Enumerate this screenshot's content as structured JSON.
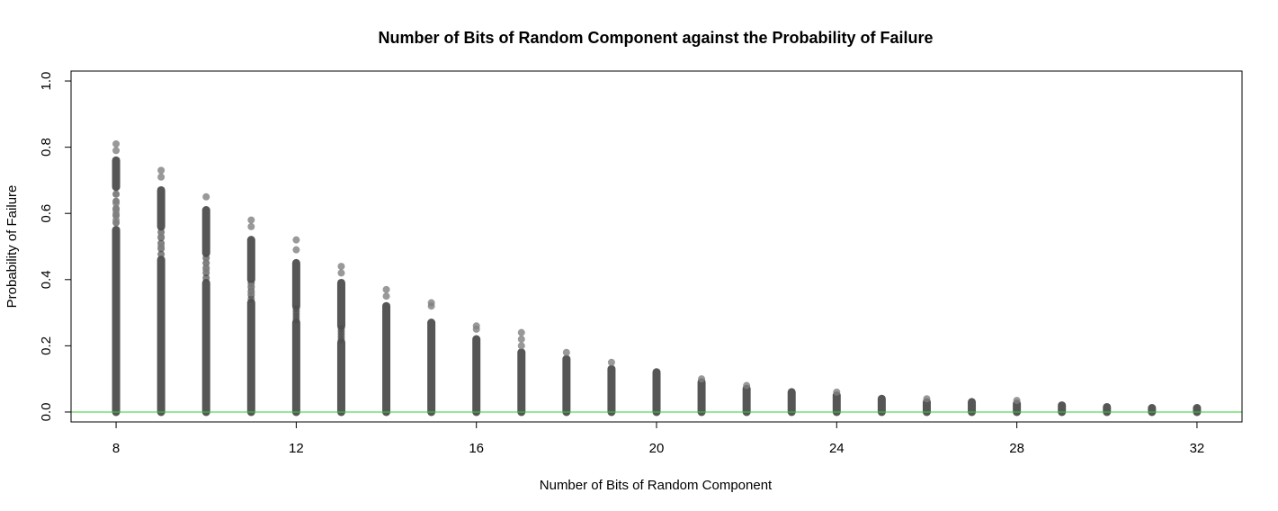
{
  "chart_data": {
    "type": "scatter",
    "title": "Number of Bits of Random Component against the Probability of Failure",
    "xlabel": "Number of Bits of Random Component",
    "ylabel": "Probability of Failure",
    "xlim": [
      7,
      33
    ],
    "ylim": [
      -0.03,
      1.03
    ],
    "xticks": [
      "8",
      "12",
      "16",
      "20",
      "24",
      "28",
      "32"
    ],
    "yticks": [
      "0.0",
      "0.2",
      "0.4",
      "0.6",
      "0.8",
      "1.0"
    ],
    "reference_line": {
      "y": 0.0,
      "color": "#33cc33"
    },
    "point_color": "#4d4d4d",
    "grid": false,
    "legend": "none",
    "columns": [
      {
        "x": 8,
        "dense_max": 0.55,
        "upper_band": [
          0.68,
          0.76
        ],
        "outliers": [
          0.81,
          0.79,
          0.63,
          0.61,
          0.6,
          0.58
        ]
      },
      {
        "x": 9,
        "dense_max": 0.46,
        "upper_band": [
          0.56,
          0.67
        ],
        "outliers": [
          0.73,
          0.71,
          0.53,
          0.5
        ]
      },
      {
        "x": 10,
        "dense_max": 0.39,
        "upper_band": [
          0.48,
          0.61
        ],
        "outliers": [
          0.65,
          0.45,
          0.43
        ]
      },
      {
        "x": 11,
        "dense_max": 0.33,
        "upper_band": [
          0.4,
          0.52
        ],
        "outliers": [
          0.58,
          0.56,
          0.38,
          0.36
        ]
      },
      {
        "x": 12,
        "dense_max": 0.27,
        "upper_band": [
          0.32,
          0.45
        ],
        "outliers": [
          0.52,
          0.49
        ]
      },
      {
        "x": 13,
        "dense_max": 0.21,
        "upper_band": [
          0.26,
          0.39
        ],
        "outliers": [
          0.44,
          0.42
        ]
      },
      {
        "x": 14,
        "dense_max": 0.32,
        "upper_band": null,
        "outliers": [
          0.37,
          0.35
        ]
      },
      {
        "x": 15,
        "dense_max": 0.27,
        "upper_band": null,
        "outliers": [
          0.33,
          0.32
        ]
      },
      {
        "x": 16,
        "dense_max": 0.22,
        "upper_band": null,
        "outliers": [
          0.26,
          0.25
        ]
      },
      {
        "x": 17,
        "dense_max": 0.18,
        "upper_band": null,
        "outliers": [
          0.24,
          0.22,
          0.2
        ]
      },
      {
        "x": 18,
        "dense_max": 0.16,
        "upper_band": null,
        "outliers": [
          0.18
        ]
      },
      {
        "x": 19,
        "dense_max": 0.13,
        "upper_band": null,
        "outliers": [
          0.15
        ]
      },
      {
        "x": 20,
        "dense_max": 0.12,
        "upper_band": null,
        "outliers": []
      },
      {
        "x": 21,
        "dense_max": 0.09,
        "upper_band": null,
        "outliers": [
          0.1
        ]
      },
      {
        "x": 22,
        "dense_max": 0.07,
        "upper_band": null,
        "outliers": [
          0.08
        ]
      },
      {
        "x": 23,
        "dense_max": 0.06,
        "upper_band": null,
        "outliers": []
      },
      {
        "x": 24,
        "dense_max": 0.05,
        "upper_band": null,
        "outliers": [
          0.06
        ]
      },
      {
        "x": 25,
        "dense_max": 0.04,
        "upper_band": null,
        "outliers": []
      },
      {
        "x": 26,
        "dense_max": 0.03,
        "upper_band": null,
        "outliers": [
          0.04
        ]
      },
      {
        "x": 27,
        "dense_max": 0.03,
        "upper_band": null,
        "outliers": []
      },
      {
        "x": 28,
        "dense_max": 0.025,
        "upper_band": null,
        "outliers": [
          0.035
        ]
      },
      {
        "x": 29,
        "dense_max": 0.02,
        "upper_band": null,
        "outliers": []
      },
      {
        "x": 30,
        "dense_max": 0.015,
        "upper_band": null,
        "outliers": []
      },
      {
        "x": 31,
        "dense_max": 0.012,
        "upper_band": null,
        "outliers": []
      },
      {
        "x": 32,
        "dense_max": 0.012,
        "upper_band": null,
        "outliers": []
      }
    ]
  }
}
